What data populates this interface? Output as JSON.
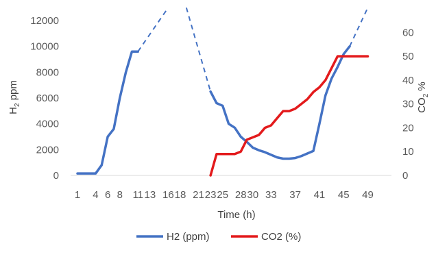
{
  "chart_data": {
    "type": "line",
    "xlabel": "Time (h)",
    "ylabel": "H2 ppm",
    "ylabel_sub": "2",
    "y2label": "CO2 %",
    "ylim": [
      0,
      12000
    ],
    "y2lim": [
      0,
      65
    ],
    "xlim": [
      1,
      52
    ],
    "yticks": [
      "0",
      "2000",
      "4000",
      "6000",
      "8000",
      "10000",
      "12000"
    ],
    "y2ticks": [
      "0",
      "10",
      "20",
      "30",
      "40",
      "50",
      "60"
    ],
    "xticks": [
      "1",
      "4",
      "6",
      "8",
      "11",
      "13",
      "16",
      "18",
      "21",
      "23",
      "25",
      "28",
      "30",
      "33",
      "37",
      "41",
      "45",
      "49"
    ],
    "grid": false,
    "legend_position": "bottom",
    "colors": {
      "h2": "#4472C4",
      "co2": "#E31A1C",
      "tick_text": "#595959",
      "title_text": "#404040"
    },
    "series": [
      {
        "name": "H2 (ppm)",
        "axis": "left",
        "x": [
          1,
          2,
          3,
          4,
          5,
          6,
          7,
          8,
          9,
          10,
          11,
          23,
          24,
          25,
          26,
          27,
          28,
          29,
          30,
          31,
          32,
          33,
          34,
          35,
          36,
          37,
          38,
          39,
          40,
          41,
          42,
          43,
          44,
          45,
          46
        ],
        "values": [
          150,
          150,
          150,
          150,
          800,
          3000,
          3600,
          6000,
          8000,
          9600,
          9600,
          6500,
          5600,
          5400,
          4000,
          3700,
          3000,
          2600,
          2150,
          1950,
          1800,
          1600,
          1400,
          1300,
          1300,
          1350,
          1500,
          1700,
          1900,
          4000,
          6200,
          7500,
          8400,
          9400,
          10000
        ],
        "x_orig": [
          1,
          4,
          5,
          6,
          7,
          8,
          9,
          10,
          11,
          23,
          24,
          25,
          26,
          27,
          28,
          30,
          33,
          35,
          36,
          37,
          39,
          41,
          43,
          45,
          46
        ],
        "dashed_segments": [
          {
            "x": [
              11,
              16
            ],
            "values": [
              9600,
              13000
            ]
          },
          {
            "x": [
              19,
              23
            ],
            "values": [
              13000,
              6500
            ]
          },
          {
            "x": [
              46,
              49
            ],
            "values": [
              10000,
              13000
            ]
          }
        ]
      },
      {
        "name": "CO2 (%)",
        "axis": "right",
        "x": [
          23,
          24,
          25,
          26,
          27,
          28,
          29,
          30,
          31,
          32,
          33,
          34,
          35,
          36,
          37,
          38,
          39,
          40,
          41,
          42,
          43,
          44,
          45,
          46,
          47,
          48,
          49
        ],
        "values": [
          0,
          9,
          9,
          9,
          9,
          10,
          15,
          16,
          17,
          20,
          21,
          24,
          27,
          27,
          28,
          30,
          32,
          35,
          37,
          40,
          45,
          50,
          50,
          50,
          50,
          50,
          50
        ]
      }
    ]
  }
}
